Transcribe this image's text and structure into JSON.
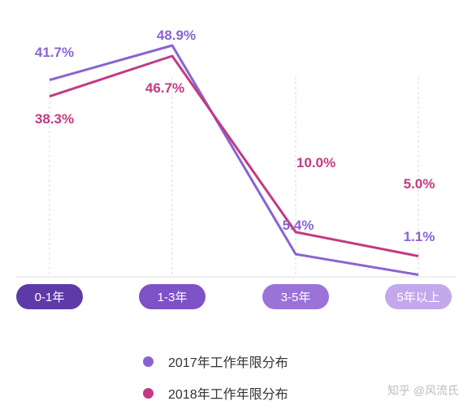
{
  "colors": {
    "series2017": "#8a63d2",
    "series2018": "#c23a83",
    "label2017": "#8a63d2",
    "label2018": "#c23a83",
    "pill_colors": [
      "#5e3aa8",
      "#7e52c6",
      "#9b73d8",
      "#c4a8ec"
    ]
  },
  "chart_data": {
    "type": "line",
    "categories": [
      "0-1年",
      "1-3年",
      "3-5年",
      "5年以上"
    ],
    "series": [
      {
        "name": "2017年工作年限分布",
        "values": [
          41.7,
          48.9,
          5.4,
          1.1
        ],
        "labels": [
          "41.7%",
          "48.9%",
          "5.4%",
          "1.1%"
        ]
      },
      {
        "name": "2018年工作年限分布",
        "values": [
          38.3,
          46.7,
          10.0,
          5.0
        ],
        "labels": [
          "38.3%",
          "46.7%",
          "10.0%",
          "5.0%"
        ]
      }
    ],
    "ylim": [
      0,
      55
    ],
    "grid": "dashed vertical guides",
    "legend": "bottom-center"
  },
  "watermark": "知乎 @风流氏"
}
